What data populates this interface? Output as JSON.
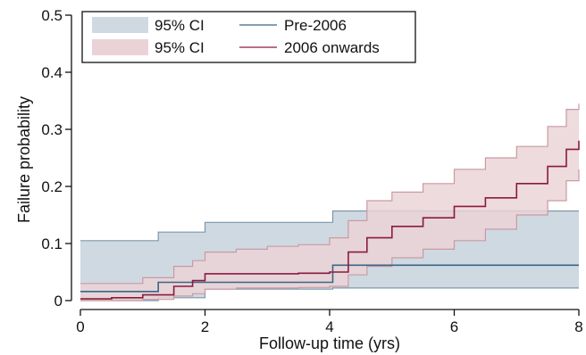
{
  "chart_data": {
    "type": "line",
    "xlabel": "Follow-up time (yrs)",
    "ylabel": "Failure probability",
    "xlim": [
      0,
      8
    ],
    "ylim": [
      0,
      0.5
    ],
    "x_ticks": [
      0,
      2,
      4,
      6,
      8
    ],
    "y_ticks": [
      0,
      0.1,
      0.2,
      0.3,
      0.4,
      0.5
    ],
    "x_tick_labels": [
      "0",
      "2",
      "4",
      "6",
      "8"
    ],
    "y_tick_labels": [
      "0",
      "0.1",
      "0.2",
      "0.3",
      "0.4",
      "0.5"
    ],
    "grid": false,
    "legend_position": "top-left",
    "colors": {
      "pre_line": "#3c6585",
      "pre_band": "#cfd9e1",
      "pre_band_edge": "#7e97ab",
      "post_line": "#8b1a3d",
      "post_band": "#ead3d6",
      "post_band_edge": "#c99aa3"
    },
    "legend": {
      "ci_pre": "95% CI",
      "ci_post": "95% CI",
      "line_pre": "Pre-2006",
      "line_post": "2006 onwards"
    },
    "series": [
      {
        "name": "Pre-2006",
        "x": [
          0,
          1.25,
          4.05,
          8
        ],
        "y": [
          0.016,
          0.032,
          0.062,
          0.062
        ],
        "ci_x": [
          0,
          1.25,
          2.0,
          4.05,
          8
        ],
        "ci_lower": [
          0.0,
          0.005,
          0.02,
          0.022,
          0.022
        ],
        "ci_upper": [
          0.105,
          0.12,
          0.137,
          0.157,
          0.157
        ]
      },
      {
        "name": "2006 onwards",
        "x": [
          0,
          0.5,
          1.0,
          1.5,
          1.8,
          2.0,
          2.5,
          3.0,
          3.5,
          4.0,
          4.3,
          4.6,
          5.0,
          5.5,
          6.0,
          6.5,
          7.0,
          7.5,
          7.8,
          8.0
        ],
        "y": [
          0.003,
          0.005,
          0.01,
          0.025,
          0.035,
          0.047,
          0.047,
          0.047,
          0.048,
          0.05,
          0.085,
          0.11,
          0.13,
          0.145,
          0.165,
          0.18,
          0.205,
          0.235,
          0.265,
          0.28
        ],
        "ci_lower": [
          0.0,
          0.0,
          0.002,
          0.008,
          0.012,
          0.02,
          0.022,
          0.022,
          0.023,
          0.025,
          0.045,
          0.06,
          0.075,
          0.09,
          0.105,
          0.125,
          0.15,
          0.175,
          0.21,
          0.23
        ],
        "ci_upper": [
          0.03,
          0.03,
          0.04,
          0.06,
          0.07,
          0.085,
          0.09,
          0.095,
          0.098,
          0.11,
          0.14,
          0.175,
          0.19,
          0.205,
          0.23,
          0.25,
          0.27,
          0.305,
          0.335,
          0.345
        ]
      }
    ]
  }
}
